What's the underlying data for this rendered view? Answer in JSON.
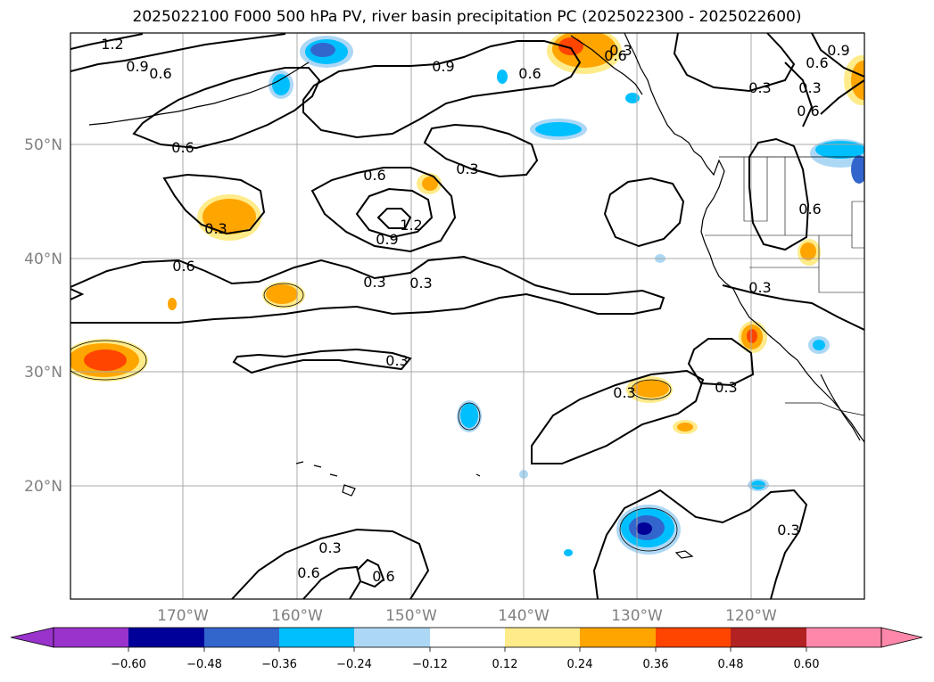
{
  "title": "2025022100 F000 500 hPa PV, river basin precipitation PC (2025022300 - 2025022600)",
  "lat_labels": [
    "50°N",
    "40°N",
    "30°N",
    "20°N"
  ],
  "lon_labels": [
    "170°W",
    "160°W",
    "150°W",
    "140°W",
    "130°W",
    "120°W"
  ],
  "contour_labels": [
    "1.2",
    "0.9",
    "0.6",
    "0.6",
    "0.9",
    "0.6",
    "0.6",
    "0.3",
    "0.6",
    "0.3",
    "0.9",
    "1.2",
    "0.3",
    "0.6",
    "0.3",
    "0.3",
    "0.3",
    "0.3",
    "0.3",
    "0.3",
    "0.6",
    "0.6",
    "0.9",
    "0.3",
    "0.6",
    "0.3",
    "0.6",
    "0.3",
    "0.6",
    "0.3"
  ],
  "colorbar": {
    "ticks": [
      "−0.60",
      "−0.48",
      "−0.36",
      "−0.24",
      "−0.12",
      "0.12",
      "0.24",
      "0.36",
      "0.48",
      "0.60"
    ],
    "colors": [
      "#9933cc",
      "#000099",
      "#3366cc",
      "#00bfff",
      "#add8f5",
      "#ffffff",
      "#ffeb8a",
      "#ffa500",
      "#ff4500",
      "#b22222",
      "#ff88aa"
    ]
  },
  "palette": {
    "neg_extreme": "#9933cc",
    "neg_dark": "#000099",
    "neg_mid": "#3366cc",
    "neg_blue": "#00bfff",
    "neg_light": "#add8f5",
    "pos_light": "#ffeb8a",
    "pos_orange": "#ffa500",
    "pos_red": "#ff4500",
    "pos_dark": "#b22222",
    "pos_extreme": "#ff88aa"
  }
}
